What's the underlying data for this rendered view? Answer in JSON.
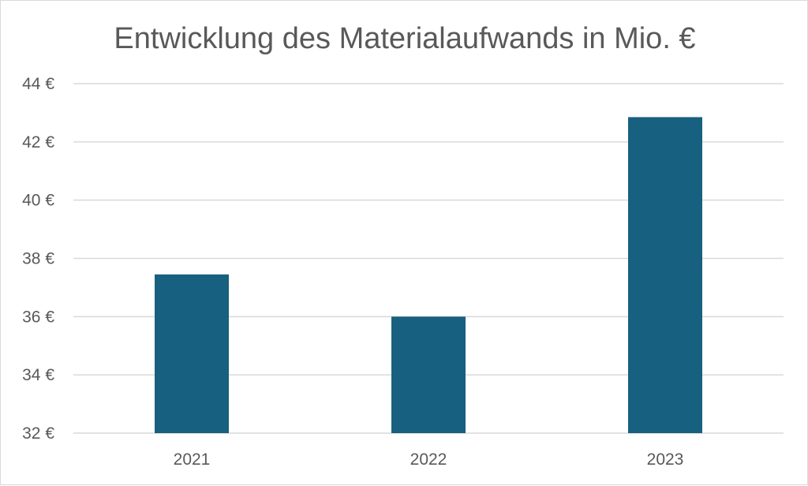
{
  "chart_data": {
    "type": "bar",
    "title": "Entwicklung des Materialaufwands in Mio. €",
    "xlabel": "",
    "ylabel": "",
    "categories": [
      "2021",
      "2022",
      "2023"
    ],
    "values": [
      37.45,
      36.0,
      42.85
    ],
    "ylim": [
      32,
      44
    ],
    "yticks": [
      32,
      34,
      36,
      38,
      40,
      42,
      44
    ],
    "ytick_suffix": " €",
    "grid": true,
    "legend": "none",
    "bar_color": "#17607F",
    "grid_color": "#D9D9D9",
    "text_color": "#595959"
  }
}
